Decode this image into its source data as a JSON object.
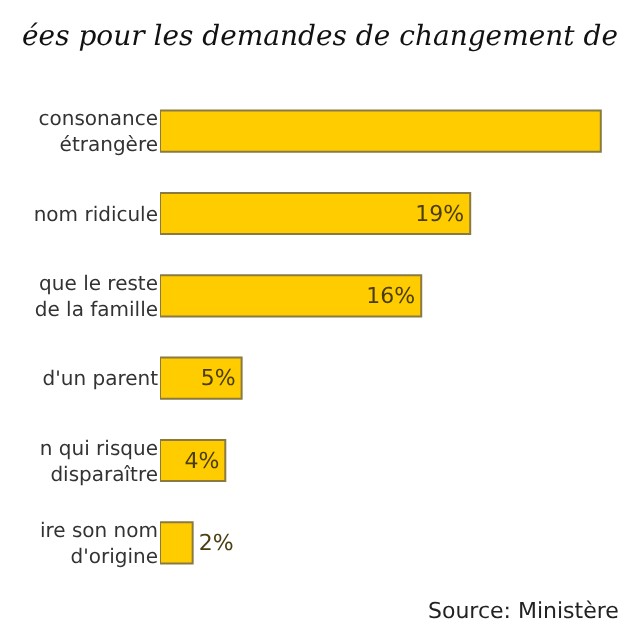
{
  "chart_data": {
    "type": "bar",
    "orientation": "horizontal",
    "title": "ées pour les demandes de changement de",
    "categories": [
      "consonance\nétrangère",
      "nom ridicule",
      "que le reste\nde la famille",
      "d'un parent",
      "n qui risque\ndisparaître",
      "ire son nom\nd'origine"
    ],
    "values": [
      27,
      19,
      16,
      5,
      4,
      2
    ],
    "value_labels": [
      null,
      "19%",
      "16%",
      "5%",
      "4%",
      "2%"
    ],
    "color": "#ffcc00",
    "annotations": [
      "Source: Ministère"
    ]
  }
}
